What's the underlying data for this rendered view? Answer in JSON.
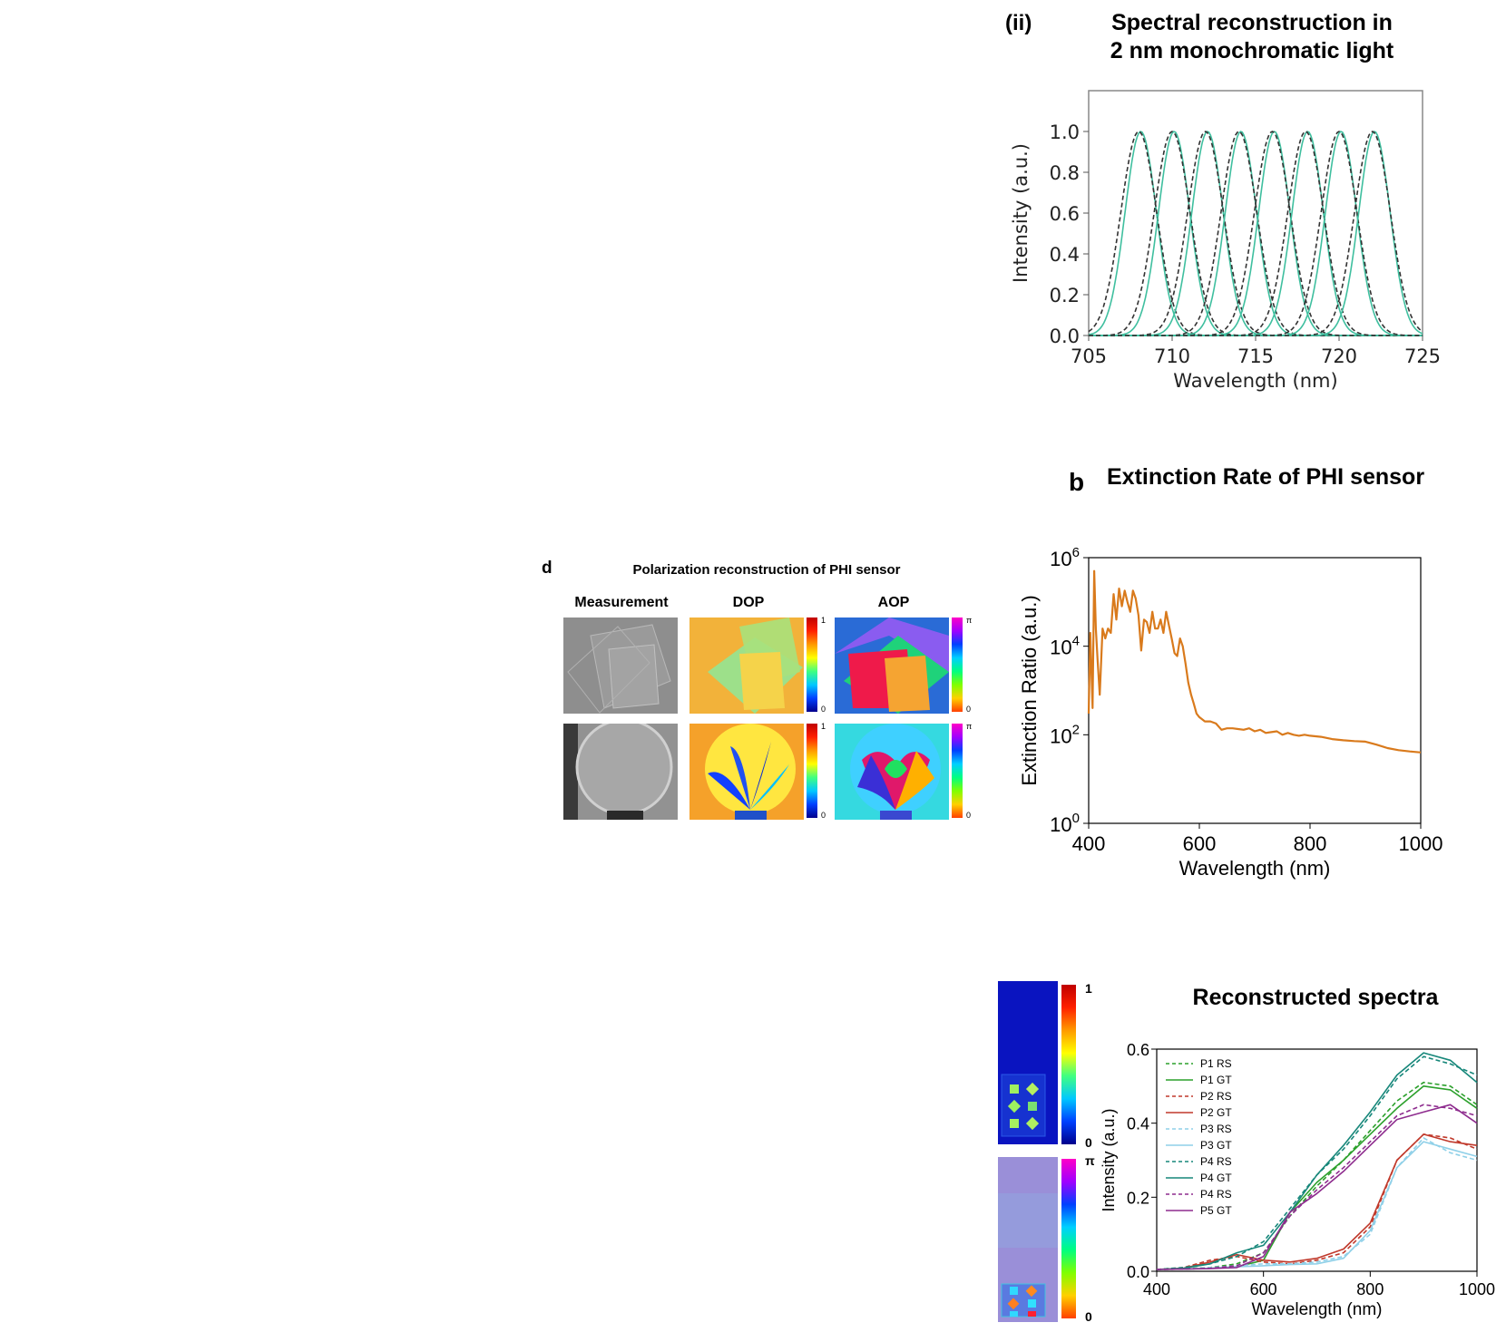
{
  "panel_ii": {
    "label": "(ii)",
    "title_line1": "Spectral reconstruction in",
    "title_line2": "2 nm monochromatic light"
  },
  "panel_b": {
    "label": "b",
    "title": "Extinction Rate of PHI sensor"
  },
  "panel_d": {
    "label": "d",
    "title": "Polarization reconstruction of PHI sensor",
    "col_measurement": "Measurement",
    "col_dop": "DOP",
    "col_aop": "AOP",
    "dop_max": "1",
    "dop_min": "0",
    "aop_max": "π",
    "aop_min": "0"
  },
  "panel_spectra_maps": {
    "cbar1_max": "1",
    "cbar1_min": "0",
    "cbar2_max": "π",
    "cbar2_min": "0"
  },
  "chart_data": [
    {
      "type": "line",
      "id": "monochromatic",
      "title": "",
      "xlabel": "Wavelength (nm)",
      "ylabel": "Intensity (a.u.)",
      "xlim": [
        705,
        725
      ],
      "ylim": [
        0,
        1.2
      ],
      "xticks": [
        705,
        710,
        715,
        720,
        725
      ],
      "yticks": [
        0.0,
        0.2,
        0.4,
        0.6,
        0.8,
        1.0
      ],
      "peaks_nm": [
        708,
        710,
        712,
        714,
        716,
        718,
        720,
        722
      ],
      "peak_fwhm_nm": 2.4,
      "series": [
        {
          "style": "solid",
          "color": "#3fbf9f"
        },
        {
          "style": "dashed",
          "color": "#333333"
        }
      ]
    },
    {
      "type": "line",
      "id": "extinction",
      "title": "",
      "xlabel": "Wavelength (nm)",
      "ylabel": "Extinction Ratio (a.u.)",
      "yscale": "log",
      "xlim": [
        400,
        1000
      ],
      "ylim_exp": [
        0,
        6
      ],
      "xticks": [
        400,
        600,
        800,
        1000
      ],
      "yticks_exp": [
        0,
        2,
        4,
        6
      ],
      "color": "#d97a1c",
      "x": [
        400,
        403,
        407,
        410,
        413,
        416,
        420,
        425,
        430,
        435,
        440,
        445,
        450,
        455,
        460,
        465,
        470,
        475,
        480,
        485,
        490,
        495,
        500,
        505,
        510,
        515,
        520,
        525,
        530,
        535,
        540,
        545,
        550,
        555,
        560,
        565,
        570,
        575,
        580,
        585,
        590,
        595,
        600,
        610,
        620,
        630,
        640,
        650,
        660,
        670,
        680,
        690,
        700,
        710,
        720,
        730,
        740,
        750,
        760,
        770,
        780,
        790,
        800,
        820,
        840,
        860,
        880,
        900,
        920,
        940,
        960,
        980,
        1000
      ],
      "values": [
        300,
        20000,
        400,
        500000,
        25000,
        5000,
        800,
        25000,
        15000,
        25000,
        20000,
        150000,
        40000,
        200000,
        80000,
        180000,
        100000,
        60000,
        180000,
        120000,
        50000,
        8000,
        40000,
        35000,
        20000,
        60000,
        25000,
        25000,
        40000,
        20000,
        60000,
        30000,
        15000,
        7000,
        6000,
        15000,
        10000,
        4000,
        1500,
        800,
        500,
        300,
        250,
        200,
        200,
        180,
        130,
        140,
        140,
        135,
        130,
        140,
        120,
        130,
        110,
        115,
        120,
        100,
        110,
        100,
        95,
        100,
        95,
        90,
        80,
        75,
        72,
        70,
        60,
        50,
        45,
        42,
        40
      ]
    },
    {
      "type": "line",
      "id": "reconstructed",
      "title": "Reconstructed spectra",
      "xlabel": "Wavelength (nm)",
      "ylabel": "Intensity (a.u.)",
      "xlim": [
        400,
        1000
      ],
      "ylim": [
        0,
        0.6
      ],
      "xticks": [
        400,
        600,
        800,
        1000
      ],
      "yticks": [
        0.0,
        0.2,
        0.4,
        0.6
      ],
      "x": [
        400,
        450,
        500,
        550,
        600,
        650,
        700,
        750,
        800,
        850,
        900,
        950,
        1000
      ],
      "series": [
        {
          "name": "P1 RS",
          "style": "dashed",
          "color": "#2ca02c",
          "values": [
            0.005,
            0.007,
            0.01,
            0.02,
            0.05,
            0.15,
            0.23,
            0.3,
            0.38,
            0.46,
            0.51,
            0.5,
            0.45
          ]
        },
        {
          "name": "P1 GT",
          "style": "solid",
          "color": "#2ca02c",
          "values": [
            0.005,
            0.006,
            0.008,
            0.012,
            0.03,
            0.16,
            0.24,
            0.3,
            0.37,
            0.44,
            0.5,
            0.49,
            0.44
          ]
        },
        {
          "name": "P2 RS",
          "style": "dashed",
          "color": "#c0392b",
          "values": [
            0.005,
            0.01,
            0.03,
            0.04,
            0.025,
            0.02,
            0.03,
            0.05,
            0.12,
            0.3,
            0.37,
            0.36,
            0.33
          ]
        },
        {
          "name": "P2 GT",
          "style": "solid",
          "color": "#c0392b",
          "values": [
            0.005,
            0.008,
            0.025,
            0.045,
            0.03,
            0.025,
            0.035,
            0.06,
            0.13,
            0.3,
            0.37,
            0.35,
            0.34
          ]
        },
        {
          "name": "P3 RS",
          "style": "dashed",
          "color": "#8fd0e8",
          "values": [
            0.005,
            0.006,
            0.01,
            0.015,
            0.02,
            0.02,
            0.025,
            0.04,
            0.1,
            0.28,
            0.36,
            0.32,
            0.3
          ]
        },
        {
          "name": "P3 GT",
          "style": "solid",
          "color": "#8fd0e8",
          "values": [
            0.005,
            0.006,
            0.008,
            0.012,
            0.015,
            0.018,
            0.02,
            0.035,
            0.11,
            0.28,
            0.35,
            0.33,
            0.31
          ]
        },
        {
          "name": "P4 RS",
          "style": "dashed",
          "color": "#17877a",
          "values": [
            0.005,
            0.01,
            0.02,
            0.04,
            0.08,
            0.17,
            0.26,
            0.33,
            0.42,
            0.52,
            0.58,
            0.56,
            0.53
          ]
        },
        {
          "name": "P4 GT",
          "style": "solid",
          "color": "#17877a",
          "values": [
            0.005,
            0.008,
            0.02,
            0.05,
            0.07,
            0.16,
            0.26,
            0.34,
            0.43,
            0.53,
            0.59,
            0.57,
            0.51
          ]
        },
        {
          "name": "P4 RS",
          "style": "dashed",
          "color": "#8e2c8e",
          "values": [
            0.005,
            0.006,
            0.008,
            0.015,
            0.05,
            0.15,
            0.22,
            0.28,
            0.35,
            0.42,
            0.45,
            0.44,
            0.42
          ]
        },
        {
          "name": "P5 GT",
          "style": "solid",
          "color": "#8e2c8e",
          "values": [
            0.005,
            0.006,
            0.007,
            0.01,
            0.04,
            0.16,
            0.21,
            0.27,
            0.34,
            0.41,
            0.43,
            0.45,
            0.4
          ]
        }
      ]
    }
  ]
}
